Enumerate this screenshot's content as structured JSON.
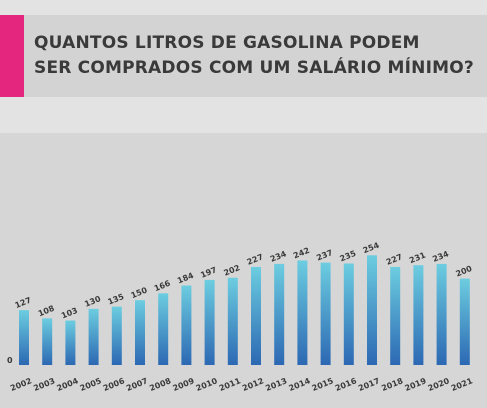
{
  "header": {
    "title_line1": "QUANTOS LITROS DE GASOLINA PODEM",
    "title_line2": "SER COMPRADOS COM UM SALÁRIO MÍNIMO?",
    "accent_color": "#e4267f"
  },
  "chart_data": {
    "type": "bar",
    "title": "QUANTOS LITROS DE GASOLINA PODEM SER COMPRADOS COM UM SALÁRIO MÍNIMO?",
    "categories": [
      "2002",
      "2003",
      "2004",
      "2005",
      "2006",
      "2007",
      "2008",
      "2009",
      "2010",
      "2011",
      "2012",
      "2013",
      "2014",
      "2015",
      "2016",
      "2017",
      "2018",
      "2019",
      "2020",
      "2021"
    ],
    "values": [
      127,
      108,
      103,
      130,
      135,
      150,
      166,
      184,
      197,
      202,
      227,
      234,
      242,
      237,
      235,
      254,
      227,
      231,
      234,
      200
    ],
    "xlabel": "",
    "ylabel": "",
    "ylim": [
      0,
      280
    ],
    "zero_label": "0",
    "grid": false,
    "bar_gradient": [
      "#6ccde0",
      "#2c68b3"
    ]
  }
}
